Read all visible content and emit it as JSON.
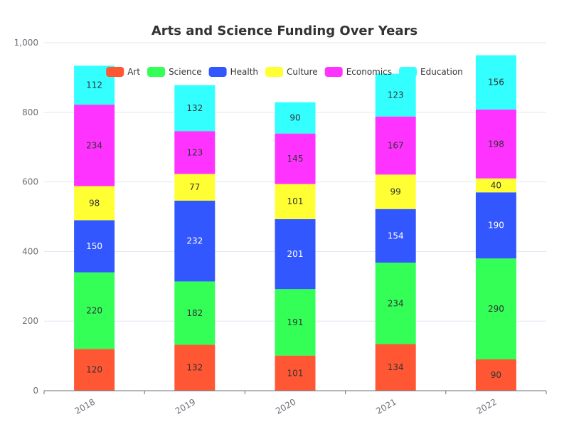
{
  "chart_data": {
    "type": "bar",
    "stacked": true,
    "title": "Arts and Science Funding Over Years",
    "xlabel": "",
    "ylabel": "",
    "categories": [
      "2018",
      "2019",
      "2020",
      "2021",
      "2022"
    ],
    "ylim": [
      0,
      1000
    ],
    "yticks": [
      0,
      200,
      400,
      600,
      800,
      1000
    ],
    "ytick_labels": [
      "0",
      "200",
      "400",
      "600",
      "800",
      "1,000"
    ],
    "grid": true,
    "legend_position": "top",
    "series": [
      {
        "name": "Art",
        "color": "#ff5733",
        "label_color": "#333333",
        "values": [
          120,
          132,
          101,
          134,
          90
        ]
      },
      {
        "name": "Science",
        "color": "#33ff57",
        "label_color": "#333333",
        "values": [
          220,
          182,
          191,
          234,
          290
        ]
      },
      {
        "name": "Health",
        "color": "#3357ff",
        "label_color": "#ffffff",
        "values": [
          150,
          232,
          201,
          154,
          190
        ]
      },
      {
        "name": "Culture",
        "color": "#ffff33",
        "label_color": "#333333",
        "values": [
          98,
          77,
          101,
          99,
          40
        ]
      },
      {
        "name": "Economics",
        "color": "#ff33ff",
        "label_color": "#333333",
        "values": [
          234,
          123,
          145,
          167,
          198
        ]
      },
      {
        "name": "Education",
        "color": "#33ffff",
        "label_color": "#333333",
        "values": [
          112,
          132,
          90,
          123,
          156
        ]
      }
    ]
  }
}
